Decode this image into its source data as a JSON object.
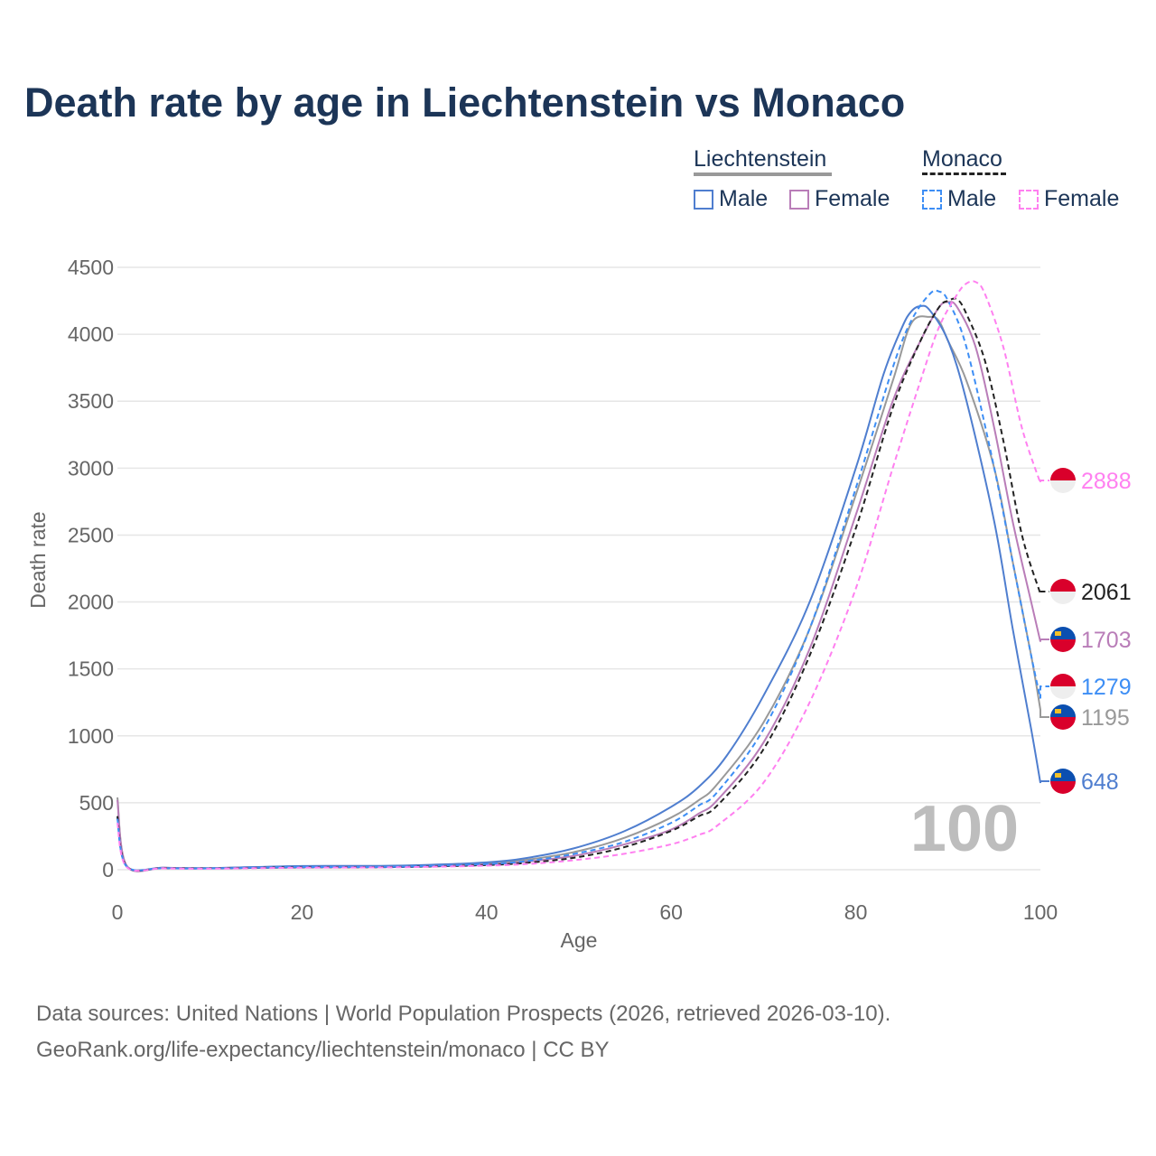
{
  "title": "Death rate by age in Liechtenstein vs Monaco",
  "legend": {
    "groups": [
      {
        "name": "Liechtenstein",
        "items": [
          "Male",
          "Female"
        ]
      },
      {
        "name": "Monaco",
        "items": [
          "Male",
          "Female"
        ]
      }
    ]
  },
  "watermark": "100",
  "source_line1": "Data sources: United Nations | World Population Prospects (2026, retrieved 2026-03-10).",
  "source_line2": "GeoRank.org/life-expectancy/liechtenstein/monaco | CC BY",
  "chart_data": {
    "type": "line",
    "title": "Death rate by age in Liechtenstein vs Monaco",
    "xlabel": "Age",
    "ylabel": "Death rate",
    "xlim": [
      0,
      100
    ],
    "ylim": [
      0,
      4500
    ],
    "xticks": [
      "0",
      "20",
      "40",
      "60",
      "80",
      "100"
    ],
    "yticks": [
      "0",
      "500",
      "1000",
      "1500",
      "2000",
      "2500",
      "3000",
      "3500",
      "4000",
      "4500"
    ],
    "grid": true,
    "legend_placement": "top-right",
    "series": [
      {
        "name": "Liechtenstein total",
        "color": "#999999",
        "dash": false,
        "flag": "liechtenstein",
        "end_label": "1195",
        "points": [
          [
            0,
            540
          ],
          [
            1,
            30
          ],
          [
            5,
            15
          ],
          [
            10,
            12
          ],
          [
            20,
            25
          ],
          [
            30,
            25
          ],
          [
            40,
            45
          ],
          [
            45,
            80
          ],
          [
            50,
            140
          ],
          [
            55,
            240
          ],
          [
            60,
            390
          ],
          [
            63,
            520
          ],
          [
            65,
            640
          ],
          [
            70,
            1100
          ],
          [
            75,
            1800
          ],
          [
            80,
            2800
          ],
          [
            84,
            3650
          ],
          [
            86,
            4080
          ],
          [
            88,
            4130
          ],
          [
            89,
            4100
          ],
          [
            90,
            3950
          ],
          [
            92,
            3650
          ],
          [
            95,
            3000
          ],
          [
            97,
            2300
          ],
          [
            99,
            1600
          ],
          [
            100,
            1195
          ]
        ]
      },
      {
        "name": "Liechtenstein male",
        "color": "#4f7ecf",
        "dash": false,
        "flag": "liechtenstein",
        "end_label": "648",
        "points": [
          [
            0,
            390
          ],
          [
            1,
            25
          ],
          [
            5,
            15
          ],
          [
            10,
            12
          ],
          [
            20,
            28
          ],
          [
            30,
            30
          ],
          [
            40,
            55
          ],
          [
            45,
            95
          ],
          [
            50,
            170
          ],
          [
            55,
            290
          ],
          [
            60,
            470
          ],
          [
            63,
            620
          ],
          [
            66,
            850
          ],
          [
            70,
            1300
          ],
          [
            75,
            2000
          ],
          [
            80,
            3000
          ],
          [
            83,
            3700
          ],
          [
            85,
            4050
          ],
          [
            86,
            4170
          ],
          [
            87,
            4210
          ],
          [
            88,
            4180
          ],
          [
            90,
            3950
          ],
          [
            92,
            3500
          ],
          [
            95,
            2600
          ],
          [
            97,
            1800
          ],
          [
            99,
            1050
          ],
          [
            100,
            648
          ]
        ]
      },
      {
        "name": "Liechtenstein female",
        "color": "#b97db8",
        "dash": false,
        "flag": "liechtenstein",
        "end_label": "1703",
        "points": [
          [
            0,
            520
          ],
          [
            1,
            30
          ],
          [
            5,
            14
          ],
          [
            10,
            10
          ],
          [
            20,
            18
          ],
          [
            30,
            20
          ],
          [
            40,
            38
          ],
          [
            45,
            65
          ],
          [
            50,
            110
          ],
          [
            55,
            190
          ],
          [
            60,
            300
          ],
          [
            63,
            420
          ],
          [
            65,
            520
          ],
          [
            70,
            950
          ],
          [
            75,
            1650
          ],
          [
            80,
            2650
          ],
          [
            84,
            3500
          ],
          [
            87,
            3950
          ],
          [
            89,
            4200
          ],
          [
            90,
            4240
          ],
          [
            91,
            4200
          ],
          [
            93,
            3900
          ],
          [
            95,
            3300
          ],
          [
            97,
            2600
          ],
          [
            99,
            2000
          ],
          [
            100,
            1703
          ]
        ]
      },
      {
        "name": "Monaco total",
        "color": "#222222",
        "dash": true,
        "flag": "monaco",
        "end_label": "2061",
        "points": [
          [
            0,
            400
          ],
          [
            1,
            25
          ],
          [
            5,
            12
          ],
          [
            10,
            10
          ],
          [
            20,
            18
          ],
          [
            30,
            20
          ],
          [
            40,
            35
          ],
          [
            45,
            55
          ],
          [
            50,
            95
          ],
          [
            55,
            170
          ],
          [
            60,
            290
          ],
          [
            63,
            400
          ],
          [
            65,
            480
          ],
          [
            70,
            900
          ],
          [
            75,
            1600
          ],
          [
            80,
            2550
          ],
          [
            84,
            3450
          ],
          [
            87,
            3950
          ],
          [
            89,
            4200
          ],
          [
            90,
            4250
          ],
          [
            91,
            4260
          ],
          [
            92,
            4150
          ],
          [
            94,
            3800
          ],
          [
            96,
            3200
          ],
          [
            98,
            2500
          ],
          [
            100,
            2061
          ]
        ]
      },
      {
        "name": "Monaco male",
        "color": "#3d8ef5",
        "dash": true,
        "flag": "monaco",
        "end_label": "1279",
        "points": [
          [
            0,
            380
          ],
          [
            1,
            25
          ],
          [
            5,
            12
          ],
          [
            10,
            10
          ],
          [
            20,
            20
          ],
          [
            30,
            22
          ],
          [
            40,
            42
          ],
          [
            45,
            70
          ],
          [
            50,
            125
          ],
          [
            55,
            210
          ],
          [
            60,
            350
          ],
          [
            63,
            480
          ],
          [
            65,
            580
          ],
          [
            70,
            1050
          ],
          [
            75,
            1800
          ],
          [
            80,
            2850
          ],
          [
            84,
            3750
          ],
          [
            86,
            4100
          ],
          [
            88,
            4300
          ],
          [
            89,
            4320
          ],
          [
            90,
            4250
          ],
          [
            92,
            3900
          ],
          [
            95,
            3000
          ],
          [
            97,
            2300
          ],
          [
            99,
            1600
          ],
          [
            100,
            1279
          ]
        ]
      },
      {
        "name": "Monaco female",
        "color": "#ff80f0",
        "dash": true,
        "flag": "monaco",
        "end_label": "2888",
        "points": [
          [
            0,
            350
          ],
          [
            1,
            20
          ],
          [
            5,
            10
          ],
          [
            10,
            8
          ],
          [
            20,
            15
          ],
          [
            30,
            18
          ],
          [
            40,
            30
          ],
          [
            45,
            45
          ],
          [
            50,
            75
          ],
          [
            55,
            120
          ],
          [
            60,
            190
          ],
          [
            63,
            260
          ],
          [
            65,
            330
          ],
          [
            70,
            650
          ],
          [
            75,
            1250
          ],
          [
            80,
            2100
          ],
          [
            84,
            3000
          ],
          [
            87,
            3650
          ],
          [
            89,
            4050
          ],
          [
            91,
            4300
          ],
          [
            92,
            4380
          ],
          [
            93,
            4390
          ],
          [
            94,
            4300
          ],
          [
            96,
            3900
          ],
          [
            98,
            3300
          ],
          [
            100,
            2888
          ]
        ]
      }
    ],
    "end_label_order": [
      "2888",
      "2061",
      "1703",
      "1279",
      "1195",
      "648"
    ]
  }
}
